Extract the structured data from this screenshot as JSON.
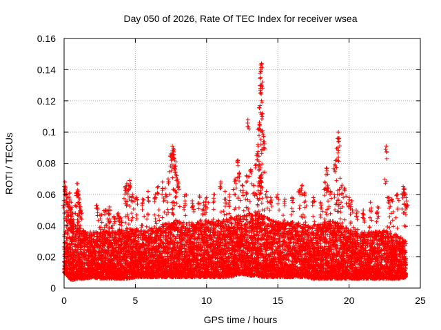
{
  "chart_data": {
    "type": "scatter",
    "title": "Day 050 of 2026, Rate Of TEC Index for receiver wsea",
    "xlabel": "GPS time / hours",
    "ylabel": "ROTI / TECUs",
    "xlim": [
      0,
      25
    ],
    "ylim": [
      0,
      0.16
    ],
    "x_ticks": [
      0,
      5,
      10,
      15,
      20,
      25
    ],
    "x_tick_labels": [
      "0",
      "5",
      "10",
      "15",
      "20",
      "25"
    ],
    "y_ticks": [
      0,
      0.02,
      0.04,
      0.06,
      0.08,
      0.1,
      0.12,
      0.14,
      0.16
    ],
    "y_tick_labels": [
      "0",
      "0.02",
      "0.04",
      "0.06",
      "0.08",
      "0.1",
      "0.12",
      "0.14",
      "0.16"
    ],
    "grid": true,
    "marker": "+",
    "color": "#ff0000",
    "series": [
      {
        "name": "ROTI",
        "points": [
          [
            0.05,
            0.068
          ],
          [
            0.1,
            0.064
          ],
          [
            0.15,
            0.06
          ],
          [
            0.25,
            0.058
          ],
          [
            0.3,
            0.052
          ],
          [
            0.4,
            0.061
          ],
          [
            0.5,
            0.055
          ],
          [
            0.6,
            0.048
          ],
          [
            0.9,
            0.067
          ],
          [
            0.95,
            0.063
          ],
          [
            1.0,
            0.06
          ],
          [
            1.1,
            0.057
          ],
          [
            1.2,
            0.05
          ],
          [
            2.3,
            0.053
          ],
          [
            2.6,
            0.047
          ],
          [
            2.9,
            0.05
          ],
          [
            3.1,
            0.05
          ],
          [
            3.2,
            0.052
          ],
          [
            3.5,
            0.046
          ],
          [
            3.8,
            0.048
          ],
          [
            4.0,
            0.045
          ],
          [
            4.3,
            0.065
          ],
          [
            4.4,
            0.067
          ],
          [
            4.5,
            0.066
          ],
          [
            4.6,
            0.069
          ],
          [
            4.8,
            0.06
          ],
          [
            5.1,
            0.058
          ],
          [
            5.5,
            0.057
          ],
          [
            5.9,
            0.062
          ],
          [
            6.4,
            0.06
          ],
          [
            6.6,
            0.065
          ],
          [
            6.9,
            0.068
          ],
          [
            7.1,
            0.064
          ],
          [
            7.3,
            0.07
          ],
          [
            7.5,
            0.086
          ],
          [
            7.6,
            0.091
          ],
          [
            7.65,
            0.088
          ],
          [
            7.7,
            0.084
          ],
          [
            7.75,
            0.082
          ],
          [
            7.8,
            0.078
          ],
          [
            7.9,
            0.072
          ],
          [
            8.0,
            0.068
          ],
          [
            8.5,
            0.06
          ],
          [
            9.0,
            0.056
          ],
          [
            9.5,
            0.059
          ],
          [
            9.8,
            0.055
          ],
          [
            10.0,
            0.058
          ],
          [
            10.5,
            0.06
          ],
          [
            11.0,
            0.068
          ],
          [
            11.3,
            0.062
          ],
          [
            11.6,
            0.06
          ],
          [
            12.0,
            0.07
          ],
          [
            12.2,
            0.082
          ],
          [
            12.3,
            0.074
          ],
          [
            12.5,
            0.066
          ],
          [
            12.8,
            0.072
          ],
          [
            12.9,
            0.108
          ],
          [
            13.1,
            0.076
          ],
          [
            13.3,
            0.066
          ],
          [
            13.5,
            0.085
          ],
          [
            13.6,
            0.092
          ],
          [
            13.7,
            0.105
          ],
          [
            13.75,
            0.117
          ],
          [
            13.8,
            0.143
          ],
          [
            13.85,
            0.144
          ],
          [
            13.78,
            0.135
          ],
          [
            13.82,
            0.13
          ],
          [
            13.9,
            0.112
          ],
          [
            13.95,
            0.101
          ],
          [
            14.0,
            0.094
          ],
          [
            13.7,
            0.079
          ],
          [
            13.8,
            0.072
          ],
          [
            13.65,
            0.068
          ],
          [
            14.2,
            0.062
          ],
          [
            14.5,
            0.058
          ],
          [
            15.0,
            0.06
          ],
          [
            15.5,
            0.057
          ],
          [
            16.0,
            0.058
          ],
          [
            16.5,
            0.063
          ],
          [
            16.7,
            0.066
          ],
          [
            16.9,
            0.061
          ],
          [
            17.5,
            0.058
          ],
          [
            18.0,
            0.055
          ],
          [
            18.3,
            0.068
          ],
          [
            18.4,
            0.077
          ],
          [
            18.5,
            0.066
          ],
          [
            18.7,
            0.062
          ],
          [
            19.0,
            0.079
          ],
          [
            19.1,
            0.082
          ],
          [
            19.2,
            0.09
          ],
          [
            19.25,
            0.1
          ],
          [
            19.3,
            0.096
          ],
          [
            19.5,
            0.066
          ],
          [
            19.7,
            0.064
          ],
          [
            20.0,
            0.058
          ],
          [
            20.2,
            0.056
          ],
          [
            20.5,
            0.05
          ],
          [
            21.0,
            0.05
          ],
          [
            21.5,
            0.055
          ],
          [
            22.0,
            0.052
          ],
          [
            22.6,
            0.091
          ],
          [
            22.8,
            0.058
          ],
          [
            23.0,
            0.057
          ],
          [
            23.4,
            0.06
          ],
          [
            23.8,
            0.065
          ],
          [
            23.9,
            0.064
          ],
          [
            24.0,
            0.058
          ]
        ],
        "bands": [
          [
            0.0,
            0.01,
            0.035
          ],
          [
            0.5,
            0.005,
            0.045
          ],
          [
            1.0,
            0.006,
            0.04
          ],
          [
            1.5,
            0.006,
            0.036
          ],
          [
            2.0,
            0.007,
            0.036
          ],
          [
            2.5,
            0.006,
            0.036
          ],
          [
            3.0,
            0.006,
            0.037
          ],
          [
            3.5,
            0.006,
            0.036
          ],
          [
            4.0,
            0.006,
            0.038
          ],
          [
            4.5,
            0.006,
            0.038
          ],
          [
            5.0,
            0.007,
            0.038
          ],
          [
            5.5,
            0.007,
            0.037
          ],
          [
            6.0,
            0.007,
            0.038
          ],
          [
            6.5,
            0.007,
            0.04
          ],
          [
            7.0,
            0.007,
            0.041
          ],
          [
            7.5,
            0.007,
            0.042
          ],
          [
            8.0,
            0.007,
            0.043
          ],
          [
            8.5,
            0.007,
            0.042
          ],
          [
            9.0,
            0.007,
            0.042
          ],
          [
            9.5,
            0.007,
            0.042
          ],
          [
            10.0,
            0.007,
            0.043
          ],
          [
            10.5,
            0.007,
            0.043
          ],
          [
            11.0,
            0.007,
            0.044
          ],
          [
            11.5,
            0.007,
            0.045
          ],
          [
            12.0,
            0.008,
            0.046
          ],
          [
            12.5,
            0.009,
            0.047
          ],
          [
            13.0,
            0.008,
            0.048
          ],
          [
            13.5,
            0.008,
            0.049
          ],
          [
            14.0,
            0.007,
            0.046
          ],
          [
            14.5,
            0.007,
            0.044
          ],
          [
            15.0,
            0.007,
            0.043
          ],
          [
            15.5,
            0.007,
            0.042
          ],
          [
            16.0,
            0.007,
            0.043
          ],
          [
            16.5,
            0.007,
            0.042
          ],
          [
            17.0,
            0.007,
            0.041
          ],
          [
            17.5,
            0.006,
            0.04
          ],
          [
            18.0,
            0.006,
            0.041
          ],
          [
            18.5,
            0.006,
            0.043
          ],
          [
            19.0,
            0.006,
            0.043
          ],
          [
            19.5,
            0.006,
            0.041
          ],
          [
            20.0,
            0.006,
            0.038
          ],
          [
            20.5,
            0.006,
            0.036
          ],
          [
            21.0,
            0.006,
            0.036
          ],
          [
            21.5,
            0.006,
            0.036
          ],
          [
            22.0,
            0.006,
            0.037
          ],
          [
            22.5,
            0.006,
            0.037
          ],
          [
            23.0,
            0.006,
            0.035
          ],
          [
            23.5,
            0.006,
            0.034
          ],
          [
            24.0,
            0.007,
            0.03
          ]
        ]
      }
    ]
  }
}
